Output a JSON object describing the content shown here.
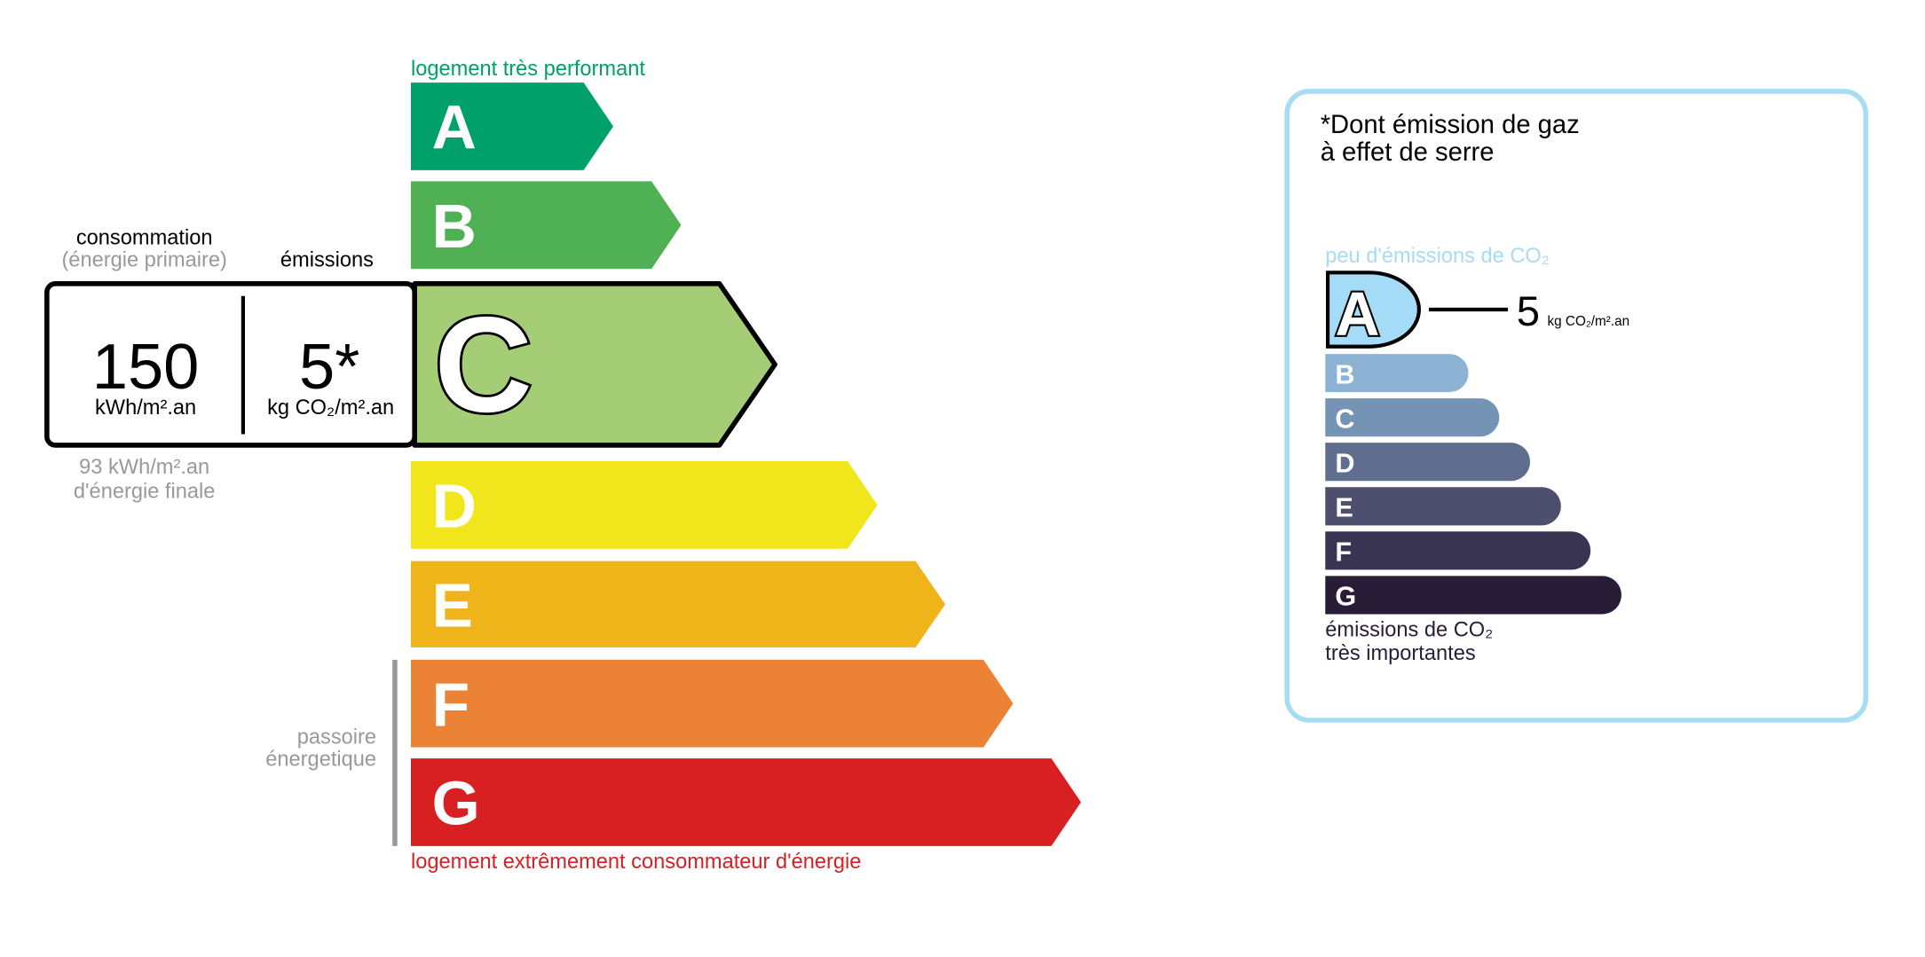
{
  "energy": {
    "top_label": "logement très performant",
    "bottom_label": "logement extrêmement consommateur d'énergie",
    "passoire_label": [
      "passoire",
      "énergetique"
    ],
    "classes": [
      {
        "letter": "A",
        "color": "#00a06a"
      },
      {
        "letter": "B",
        "color": "#50b054"
      },
      {
        "letter": "C",
        "color": "#a5cd75"
      },
      {
        "letter": "D",
        "color": "#f0e61b"
      },
      {
        "letter": "E",
        "color": "#eeb419"
      },
      {
        "letter": "F",
        "color": "#eb8235"
      },
      {
        "letter": "G",
        "color": "#d81f22"
      }
    ],
    "current_class": "C",
    "consumption_header": "consommation",
    "consumption_sub": "(énergie primaire)",
    "emissions_header": "émissions",
    "consumption_value": "150",
    "consumption_unit": "kWh/m².an",
    "emissions_value": "5*",
    "emissions_unit": "kg CO₂/m².an",
    "final_energy": [
      "93 kWh/m².an",
      "d'énergie finale"
    ],
    "top_color": "#00a06a",
    "bottom_color": "#d81f22"
  },
  "ges": {
    "title": [
      "*Dont émission de gaz",
      "à effet de serre"
    ],
    "top_label": "peu d'émissions de CO₂",
    "bottom_label": [
      "émissions de CO₂",
      "très importantes"
    ],
    "classes": [
      {
        "letter": "A",
        "color": "#a4dbf6"
      },
      {
        "letter": "B",
        "color": "#8db3d4"
      },
      {
        "letter": "C",
        "color": "#7593b5"
      },
      {
        "letter": "D",
        "color": "#5f6d8f"
      },
      {
        "letter": "E",
        "color": "#4c4f6e"
      },
      {
        "letter": "F",
        "color": "#383452"
      },
      {
        "letter": "G",
        "color": "#281c37"
      }
    ],
    "current_class": "A",
    "value": "5",
    "unit": "kg CO₂/m².an",
    "border_color": "#a8dcf5"
  }
}
